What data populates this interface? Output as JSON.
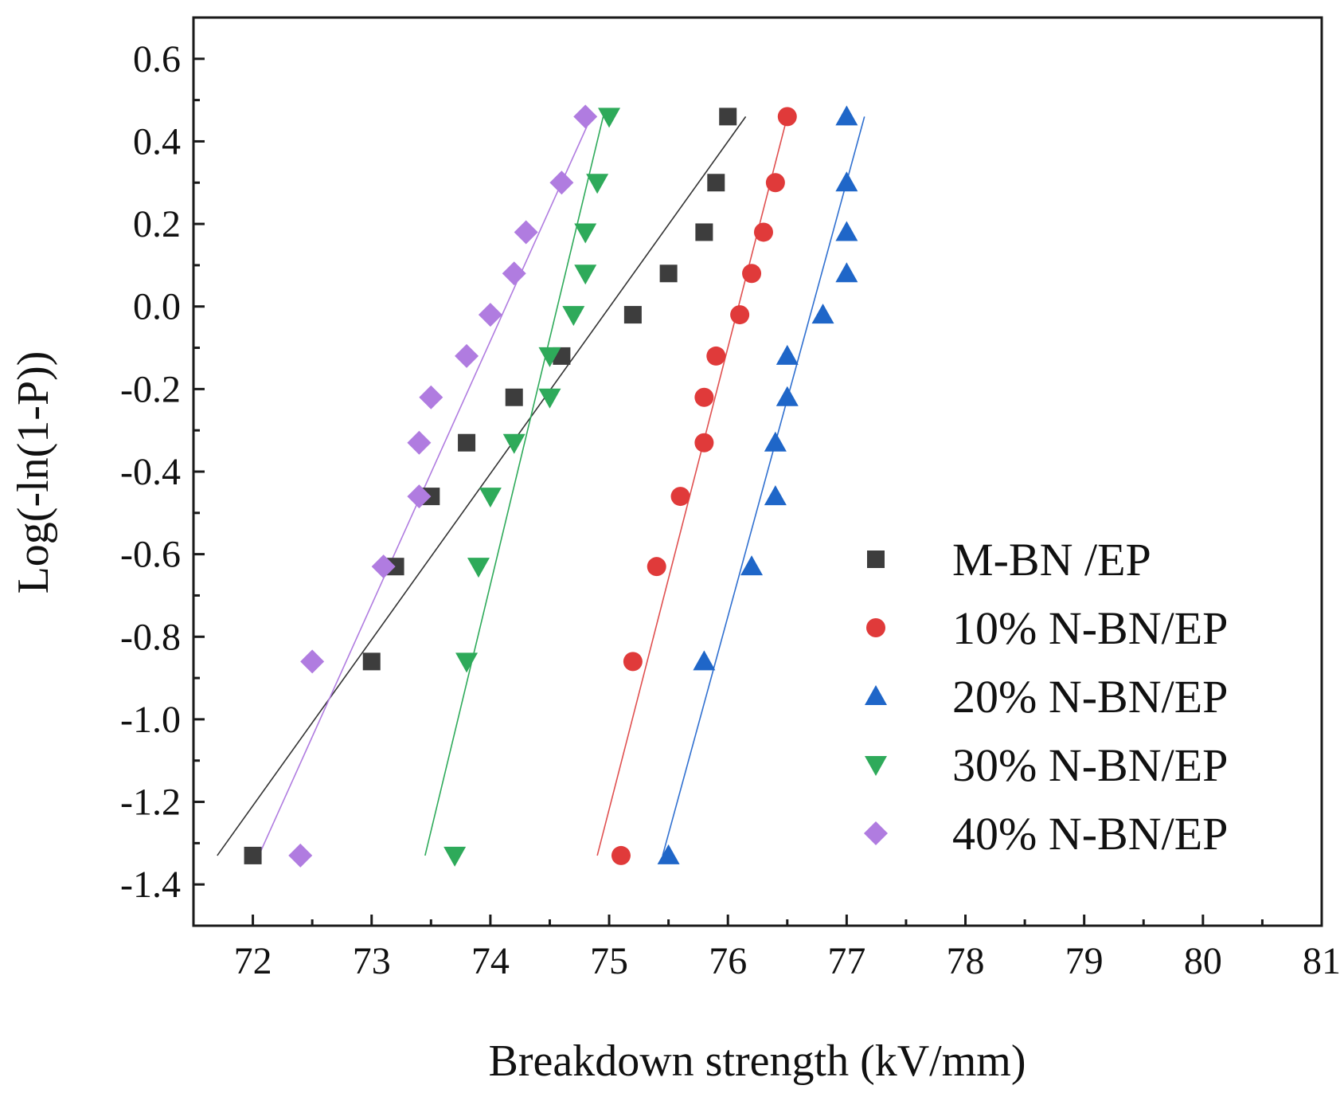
{
  "chart_data": {
    "type": "scatter",
    "xlabel": "Breakdown strength (kV/mm)",
    "ylabel": "Log(-ln(1-P))",
    "xlim": [
      71.5,
      81
    ],
    "ylim": [
      -1.5,
      0.7
    ],
    "xticks": [
      72,
      73,
      74,
      75,
      76,
      77,
      78,
      79,
      80,
      81
    ],
    "yticks": [
      -1.4,
      -1.2,
      -1.0,
      -0.8,
      -0.6,
      -0.4,
      -0.2,
      0.0,
      0.2,
      0.4,
      0.6
    ],
    "x_tick_labels": [
      "72",
      "73",
      "74",
      "75",
      "76",
      "77",
      "78",
      "79",
      "80",
      "81"
    ],
    "y_tick_labels": [
      "-1.4",
      "-1.2",
      "-1.0",
      "-0.8",
      "-0.6",
      "-0.4",
      "-0.2",
      "0.0",
      "0.2",
      "0.4",
      "0.6"
    ],
    "legend_position": "bottom-right",
    "grid": false,
    "series": [
      {
        "name": "M-BN /EP",
        "marker": "square",
        "color": "#3d3d3d",
        "line_color": "#333333",
        "x": [
          72.0,
          73.0,
          73.2,
          73.5,
          73.8,
          74.2,
          74.6,
          75.2,
          75.5,
          75.8,
          75.9,
          76.0
        ],
        "y": [
          -1.33,
          -0.86,
          -0.63,
          -0.46,
          -0.33,
          -0.22,
          -0.12,
          -0.02,
          0.08,
          0.18,
          0.3,
          0.46
        ],
        "fit": {
          "x": [
            71.7,
            76.15
          ],
          "y": [
            -1.33,
            0.46
          ]
        }
      },
      {
        "name": "10% N-BN/EP",
        "marker": "circle",
        "color": "#e03a3a",
        "line_color": "#e05050",
        "x": [
          75.1,
          75.2,
          75.4,
          75.6,
          75.8,
          75.8,
          75.9,
          76.1,
          76.2,
          76.3,
          76.4,
          76.5
        ],
        "y": [
          -1.33,
          -0.86,
          -0.63,
          -0.46,
          -0.33,
          -0.22,
          -0.12,
          -0.02,
          0.08,
          0.18,
          0.3,
          0.46
        ],
        "fit": {
          "x": [
            74.9,
            76.5
          ],
          "y": [
            -1.33,
            0.46
          ]
        }
      },
      {
        "name": "20% N-BN/EP",
        "marker": "triangle-up",
        "color": "#1f66c8",
        "line_color": "#3070d0",
        "x": [
          75.5,
          75.8,
          76.2,
          76.4,
          76.4,
          76.5,
          76.5,
          76.8,
          77.0,
          77.0,
          77.0,
          77.0
        ],
        "y": [
          -1.33,
          -0.86,
          -0.63,
          -0.46,
          -0.33,
          -0.22,
          -0.12,
          -0.02,
          0.08,
          0.18,
          0.3,
          0.46
        ],
        "fit": {
          "x": [
            75.45,
            77.15
          ],
          "y": [
            -1.33,
            0.46
          ]
        }
      },
      {
        "name": "30% N-BN/EP",
        "marker": "triangle-down",
        "color": "#2eaa5a",
        "line_color": "#2eaa5a",
        "x": [
          73.7,
          73.8,
          73.9,
          74.0,
          74.2,
          74.5,
          74.5,
          74.7,
          74.8,
          74.8,
          74.9,
          75.0
        ],
        "y": [
          -1.33,
          -0.86,
          -0.63,
          -0.46,
          -0.33,
          -0.22,
          -0.12,
          -0.02,
          0.08,
          0.18,
          0.3,
          0.46
        ],
        "fit": {
          "x": [
            73.45,
            74.95
          ],
          "y": [
            -1.33,
            0.46
          ]
        }
      },
      {
        "name": "40% N-BN/EP",
        "marker": "diamond",
        "color": "#b07ce0",
        "line_color": "#b07ce0",
        "x": [
          72.4,
          72.5,
          73.1,
          73.4,
          73.4,
          73.5,
          73.8,
          74.0,
          74.2,
          74.3,
          74.6,
          74.8
        ],
        "y": [
          -1.33,
          -0.86,
          -0.63,
          -0.46,
          -0.33,
          -0.22,
          -0.12,
          -0.02,
          0.08,
          0.18,
          0.3,
          0.46
        ],
        "fit": {
          "x": [
            72.05,
            74.85
          ],
          "y": [
            -1.33,
            0.46
          ]
        }
      }
    ]
  }
}
